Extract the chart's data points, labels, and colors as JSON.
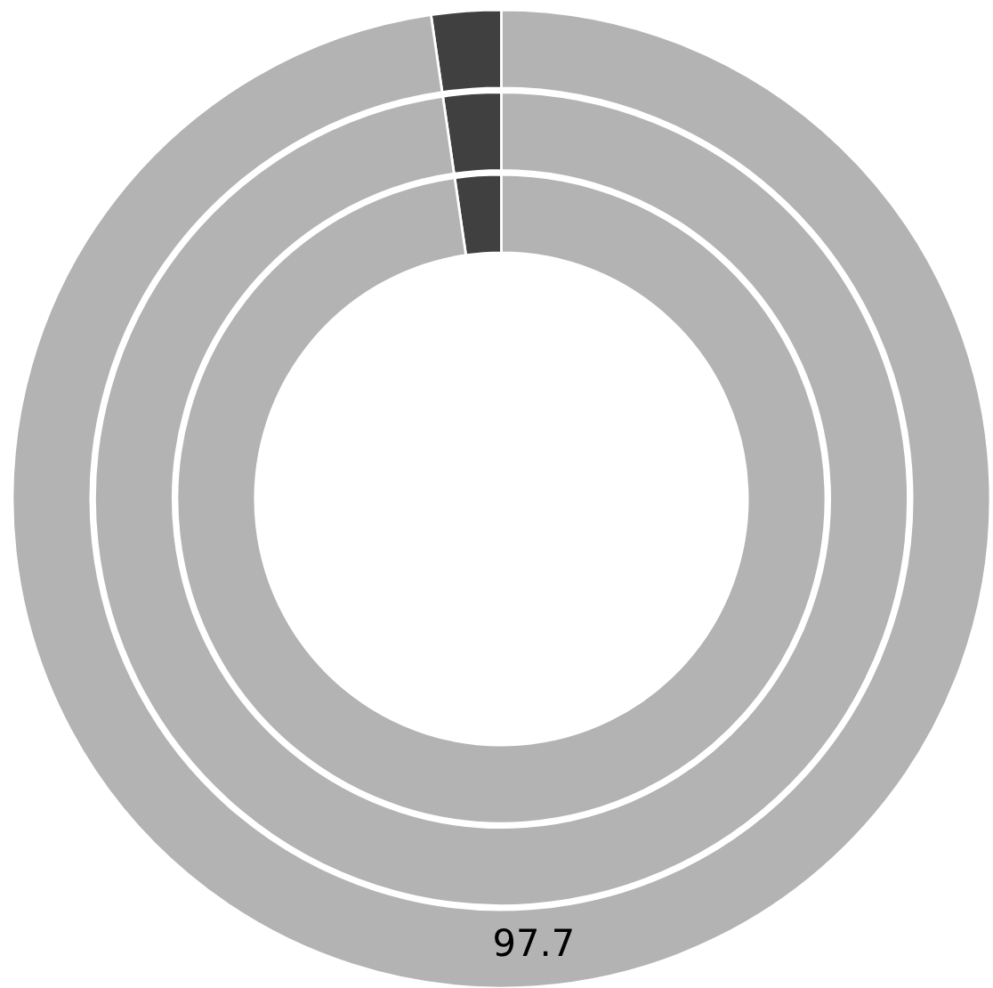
{
  "chart_data": {
    "type": "donut",
    "categories": [
      null,
      null
    ],
    "series": [
      {
        "values": [
          2.3,
          97.7
        ],
        "colors": [
          "#404040",
          "#b3b3b3"
        ],
        "value_labels": [
          null,
          null
        ]
      },
      {
        "values": [
          2.3,
          97.7
        ],
        "colors": [
          "#404040",
          "#b3b3b3"
        ],
        "value_labels": [
          null,
          null
        ]
      },
      {
        "values": [
          2.3,
          97.7
        ],
        "colors": [
          "#404040",
          "#b3b3b3"
        ],
        "value_labels": [
          null,
          "97.7"
        ]
      }
    ],
    "legend": false
  }
}
